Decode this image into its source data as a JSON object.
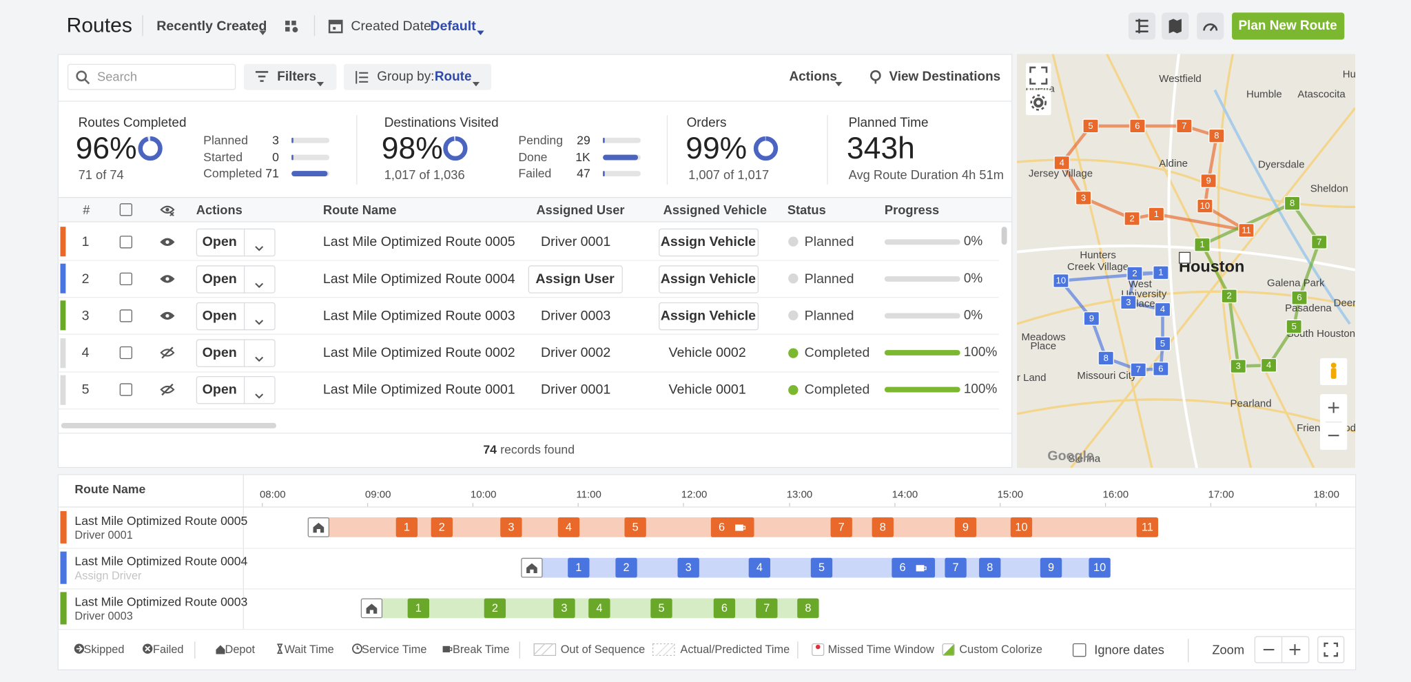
{
  "header": {
    "title": "Routes",
    "sort": "Recently Created",
    "date_label": "Created Date:",
    "date_value": "Default",
    "primary_button": "Plan New Route"
  },
  "toolbar": {
    "search_placeholder": "Search",
    "filters": "Filters",
    "group_by_label": "Group by:",
    "group_by_value": "Route",
    "actions": "Actions",
    "view_destinations": "View Destinations"
  },
  "stats": [
    {
      "title": "Routes Completed",
      "value": "96%",
      "detail": "71 of 74",
      "breakdown": [
        {
          "label": "Planned",
          "count": "3"
        },
        {
          "label": "Started",
          "count": "0"
        },
        {
          "label": "Completed",
          "count": "71"
        }
      ]
    },
    {
      "title": "Destinations Visited",
      "value": "98%",
      "detail": "1,017 of 1,036",
      "breakdown": [
        {
          "label": "Pending",
          "count": "29"
        },
        {
          "label": "Done",
          "count": "1K"
        },
        {
          "label": "Failed",
          "count": "47"
        }
      ]
    },
    {
      "title": "Orders",
      "value": "99%",
      "detail": "1,007 of 1,017"
    },
    {
      "title": "Planned Time",
      "value": "343h",
      "detail": "Avg Route Duration 4h 51m"
    }
  ],
  "table": {
    "columns": [
      "#",
      "Actions",
      "Route Name",
      "Assigned User",
      "Assigned Vehicle",
      "Status",
      "Progress"
    ],
    "rows": [
      {
        "number": "1",
        "color": "#e8692a",
        "visible": true,
        "action": "Open",
        "route": "Last Mile Optimized Route 0005",
        "user": "Driver 0001",
        "vehicle": "Assign Vehicle",
        "status": "Planned",
        "progress": "0%"
      },
      {
        "number": "2",
        "color": "#4a74e0",
        "visible": true,
        "action": "Open",
        "route": "Last Mile Optimized Route 0004",
        "user": "Assign User",
        "vehicle": "Assign Vehicle",
        "status": "Planned",
        "progress": "0%"
      },
      {
        "number": "3",
        "color": "#6aa82a",
        "visible": true,
        "action": "Open",
        "route": "Last Mile Optimized Route 0003",
        "user": "Driver 0003",
        "vehicle": "Assign Vehicle",
        "status": "Planned",
        "progress": "0%"
      },
      {
        "number": "4",
        "color": "#dcdcdc",
        "visible": false,
        "action": "Open",
        "route": "Last Mile Optimized Route 0002",
        "user": "Driver 0002",
        "vehicle": "Vehicle 0002",
        "status": "Completed",
        "progress": "100%"
      },
      {
        "number": "5",
        "color": "#dcdcdc",
        "visible": false,
        "action": "Open",
        "route": "Last Mile Optimized Route 0001",
        "user": "Driver 0001",
        "vehicle": "Vehicle 0001",
        "status": "Completed",
        "progress": "100%"
      }
    ]
  },
  "footer": {
    "count": "74",
    "text": "records found"
  },
  "map": {
    "places": [
      "ouetta",
      "Westfield",
      "Humble",
      "Atascocita",
      "Huff",
      "Jersey Village",
      "Aldine",
      "Dyersdale",
      "Sheldon",
      "Hunters",
      "Creek Village",
      "Houston",
      "West",
      "University",
      "Place",
      "Galena Park",
      "Pasadena",
      "Deer Park",
      "South Houston",
      "Meadows",
      "Place",
      "Missouri City",
      "r Land",
      "Pearland",
      "Friendswood",
      "Sienna",
      "Google"
    ],
    "routes": [
      {
        "color": "#e8692a",
        "markers": [
          "1",
          "2",
          "3",
          "4",
          "5",
          "6",
          "7",
          "8",
          "9",
          "10",
          "11"
        ]
      },
      {
        "color": "#4a74e0",
        "markers": [
          "1",
          "2",
          "3",
          "4",
          "5",
          "6",
          "7",
          "8",
          "9",
          "10"
        ]
      },
      {
        "color": "#6aa82a",
        "markers": [
          "1",
          "2",
          "3",
          "4",
          "5",
          "6",
          "7",
          "8"
        ]
      }
    ]
  },
  "timeline": {
    "header": "Route Name",
    "hours": [
      "08:00",
      "09:00",
      "10:00",
      "11:00",
      "12:00",
      "13:00",
      "14:00",
      "15:00",
      "16:00",
      "17:00",
      "18:00"
    ],
    "rows": [
      {
        "route": "Last Mile Optimized Route 0005",
        "driver": "Driver 0001",
        "color": "#e8692a",
        "light": "#f8cdb9",
        "stops": [
          "1",
          "2",
          "3",
          "4",
          "5",
          "6",
          "7",
          "8",
          "9",
          "10",
          "11"
        ]
      },
      {
        "route": "Last Mile Optimized Route 0004",
        "driver": "Assign Driver",
        "color": "#4a74e0",
        "light": "#cbd7f8",
        "stops": [
          "1",
          "2",
          "3",
          "4",
          "5",
          "6",
          "7",
          "8",
          "9",
          "10"
        ]
      },
      {
        "route": "Last Mile Optimized Route 0003",
        "driver": "Driver 0003",
        "color": "#6aa82a",
        "light": "#d6ecc4",
        "stops": [
          "1",
          "2",
          "3",
          "4",
          "5",
          "6",
          "7",
          "8"
        ]
      }
    ]
  },
  "legend": {
    "items": [
      "Skipped",
      "Failed",
      "Depot",
      "Wait Time",
      "Service Time",
      "Break Time",
      "Out of Sequence",
      "Actual/Predicted Time",
      "Missed Time Window",
      "Custom Colorize"
    ],
    "ignore_dates": "Ignore dates",
    "zoom": "Zoom"
  }
}
